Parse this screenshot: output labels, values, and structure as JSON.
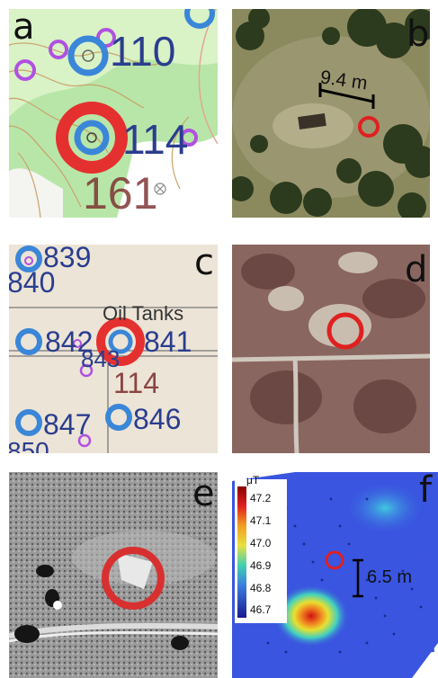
{
  "panels": [
    {
      "letter": "a",
      "labels": [
        "110",
        "114",
        "161"
      ]
    },
    {
      "letter": "b",
      "scale": "9.4 m"
    },
    {
      "letter": "c",
      "labels": [
        "839",
        "840",
        "Oil Tanks",
        "842",
        "841",
        "843",
        "114",
        "847",
        "846",
        "850"
      ]
    },
    {
      "letter": "d"
    },
    {
      "letter": "e"
    },
    {
      "letter": "f",
      "unit": "μT",
      "colorbar": [
        "47.2",
        "47.1",
        "47.0",
        "46.9",
        "46.8",
        "46.7"
      ],
      "scale": "6.5 m"
    }
  ],
  "colors": {
    "target_ring": "#e02020",
    "site_ring": "#3a86d8",
    "well_label": "#2a3d8f",
    "brown_label": "#7a2a2a",
    "purple_ring": "#b050e0"
  }
}
